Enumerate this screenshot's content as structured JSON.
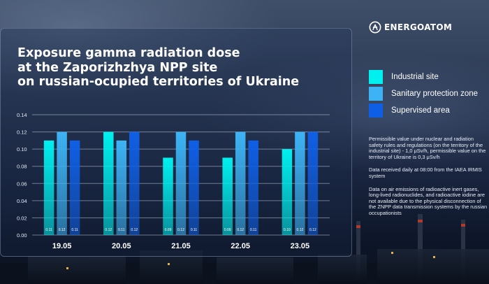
{
  "brand": {
    "name": "ENERGOATOM",
    "logo_icon": "energoatom-logo-icon"
  },
  "title_lines": [
    "Exposure gamma radiation dose",
    "at the Zaporizhzhya NPP site",
    "on russian-ocupied territories of Ukraine"
  ],
  "legend": [
    {
      "label": "Industrial site",
      "color": "#00F0F0"
    },
    {
      "label": "Sanitary protection zone",
      "color": "#3DB3F5"
    },
    {
      "label": "Supervised area",
      "color": "#0F5FE6"
    }
  ],
  "notes": [
    {
      "lines": [
        "Permissible value under nuclear and radiation",
        "safety rules and regulations (on the territory of the",
        "industrial site) - 1,0 μSv/h, permissible value on the",
        "territory of Ukraine is 0,3 μSv/h"
      ]
    },
    {
      "lines": [
        "Data received daily at 08:00 from the IAEA IRMIS",
        "system"
      ]
    },
    {
      "lines": [
        "Data on air emissions of radioactive inert gases,",
        "long-lived radionuclides, and radioactive iodine are",
        "not available due to the physical disconnection of",
        "the ZNPP data transmission systems by the russian",
        "occupationists"
      ]
    }
  ],
  "chart_data": {
    "type": "bar",
    "categories": [
      "19.05",
      "20.05",
      "21.05",
      "22.05",
      "23.05"
    ],
    "series": [
      {
        "name": "Industrial site",
        "values": [
          0.11,
          0.12,
          0.09,
          0.09,
          0.1
        ],
        "labels": [
          "0.11",
          "0.12",
          "0.09",
          "0.09",
          "0.10"
        ]
      },
      {
        "name": "Sanitary protection zone",
        "values": [
          0.12,
          0.11,
          0.12,
          0.12,
          0.12
        ],
        "labels": [
          "0.12",
          "0.11",
          "0.12",
          "0.12",
          "0.12"
        ]
      },
      {
        "name": "Supervised area",
        "values": [
          0.11,
          0.12,
          0.11,
          0.11,
          0.12
        ],
        "labels": [
          "0.11",
          "0.12",
          "0.11",
          "0.11",
          "0.12"
        ]
      }
    ],
    "yticks": [
      "0.00",
      "0.02",
      "0.04",
      "0.06",
      "0.08",
      "0.10",
      "0.12",
      "0.14"
    ],
    "ylim": [
      0,
      0.14
    ],
    "grid": true,
    "legend_position": "right",
    "colors": [
      "#00F0F0",
      "#3DB3F5",
      "#0F5FE6"
    ]
  }
}
